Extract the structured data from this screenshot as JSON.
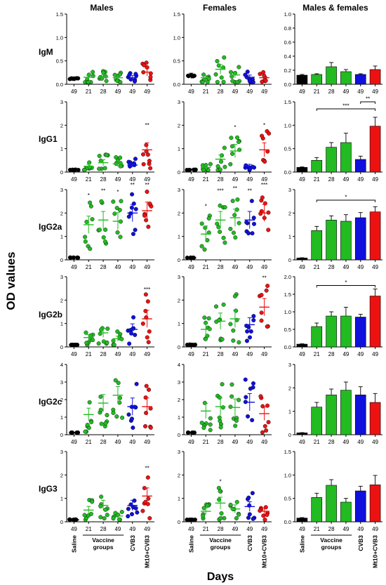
{
  "figure": {
    "columns": [
      "Males",
      "Females",
      "Males & females"
    ],
    "rows": [
      "IgM",
      "IgG1",
      "IgG2a",
      "IgG2b",
      "IgG2c",
      "IgG3"
    ],
    "y_axis_label": "OD values",
    "x_axis_label": "Days",
    "day_labels": [
      "49",
      "21",
      "28",
      "49",
      "49",
      "49"
    ],
    "group_labels": {
      "saline": "Saline",
      "vaccine": "Vaccine groups",
      "cvb3": "CVB3",
      "mt10": "Mt10+CVB3"
    },
    "colors": {
      "saline": "#000000",
      "vaccine": "#22bb22",
      "cvb3": "#1010dd",
      "mt10": "#ee1111"
    }
  },
  "chart_data": [
    {
      "type": "scatter",
      "row": "IgM",
      "column": "Males",
      "ylim": [
        0,
        1.5
      ],
      "ticks": [
        "0.0",
        "0.5",
        "1.0",
        "1.5"
      ],
      "means": [
        0.12,
        0.15,
        0.15,
        0.14,
        0.14,
        0.26
      ],
      "sig": [
        "",
        "",
        "",
        "",
        "",
        ""
      ]
    },
    {
      "type": "scatter",
      "row": "IgM",
      "column": "Females",
      "ylim": [
        0,
        1.5
      ],
      "ticks": [
        "0.0",
        "0.5",
        "1.0",
        "1.5"
      ],
      "means": [
        0.18,
        0.14,
        0.32,
        0.2,
        0.15,
        0.14
      ],
      "sig": [
        "",
        "",
        "",
        "",
        "",
        ""
      ]
    },
    {
      "type": "bar",
      "row": "IgM",
      "column": "Males & females",
      "ylim": [
        0,
        1.0
      ],
      "ticks": [
        "0.0",
        "0.2",
        "0.4",
        "0.6",
        "0.8",
        "1.0"
      ],
      "values": [
        0.13,
        0.14,
        0.25,
        0.18,
        0.14,
        0.21
      ],
      "errors": [
        0.01,
        0.01,
        0.06,
        0.03,
        0.01,
        0.05
      ],
      "brackets": []
    },
    {
      "type": "scatter",
      "row": "IgG1",
      "column": "Males",
      "ylim": [
        0,
        3
      ],
      "ticks": [
        "0",
        "1",
        "2",
        "3"
      ],
      "means": [
        0.1,
        0.25,
        0.4,
        0.35,
        0.3,
        0.95
      ],
      "sig": [
        "",
        "",
        "",
        "",
        "",
        "**"
      ]
    },
    {
      "type": "scatter",
      "row": "IgG1",
      "column": "Females",
      "ylim": [
        0,
        3
      ],
      "ticks": [
        "0",
        "1",
        "2",
        "3"
      ],
      "means": [
        0.1,
        0.2,
        0.55,
        0.9,
        0.25,
        0.95
      ],
      "sig": [
        "",
        "",
        "",
        "*",
        "",
        "*"
      ]
    },
    {
      "type": "bar",
      "row": "IgG1",
      "column": "Males & females",
      "ylim": [
        0,
        1.5
      ],
      "ticks": [
        "0.0",
        "0.5",
        "1.0",
        "1.5"
      ],
      "values": [
        0.1,
        0.25,
        0.53,
        0.63,
        0.27,
        0.98
      ],
      "errors": [
        0.01,
        0.06,
        0.1,
        0.2,
        0.07,
        0.19
      ],
      "brackets": [
        {
          "from": 1,
          "to": 5,
          "label": "***",
          "y": 1.35
        },
        {
          "from": 4,
          "to": 5,
          "label": "**",
          "y": 1.5
        }
      ]
    },
    {
      "type": "scatter",
      "row": "IgG2a",
      "column": "Males",
      "ylim": [
        0,
        3
      ],
      "ticks": [
        "0",
        "1",
        "2",
        "3"
      ],
      "means": [
        0.08,
        1.5,
        1.7,
        1.65,
        2.0,
        2.1
      ],
      "sig": [
        "",
        "*",
        "**",
        "*",
        "**",
        "**"
      ]
    },
    {
      "type": "scatter",
      "row": "IgG2a",
      "column": "Females",
      "ylim": [
        0,
        3
      ],
      "ticks": [
        "0",
        "1",
        "2",
        "3"
      ],
      "means": [
        0.08,
        1.1,
        1.7,
        1.8,
        1.7,
        2.0
      ],
      "sig": [
        "",
        "*",
        "***",
        "**",
        "**",
        "***"
      ]
    },
    {
      "type": "bar",
      "row": "IgG2a",
      "column": "Males & females",
      "ylim": [
        0,
        3
      ],
      "ticks": [
        "0",
        "1",
        "2",
        "3"
      ],
      "values": [
        0.08,
        1.25,
        1.7,
        1.65,
        1.8,
        2.05
      ],
      "errors": [
        0.01,
        0.18,
        0.18,
        0.28,
        0.22,
        0.22
      ],
      "brackets": [
        {
          "from": 1,
          "to": 5,
          "label": "*",
          "y": 2.55
        }
      ]
    },
    {
      "type": "scatter",
      "row": "IgG2b",
      "column": "Males",
      "ylim": [
        0,
        3
      ],
      "ticks": [
        "0",
        "1",
        "2",
        "3"
      ],
      "means": [
        0.08,
        0.4,
        0.6,
        0.35,
        0.75,
        1.2
      ],
      "sig": [
        "",
        "",
        "",
        "",
        "",
        "***"
      ]
    },
    {
      "type": "scatter",
      "row": "IgG2b",
      "column": "Females",
      "ylim": [
        0,
        3
      ],
      "ticks": [
        "0",
        "1",
        "2",
        "3"
      ],
      "means": [
        0.08,
        0.75,
        1.1,
        1.2,
        0.95,
        1.7
      ],
      "sig": [
        "",
        "",
        "",
        "",
        "",
        "**"
      ]
    },
    {
      "type": "bar",
      "row": "IgG2b",
      "column": "Males & females",
      "ylim": [
        0,
        2.0
      ],
      "ticks": [
        "0.0",
        "0.5",
        "1.0",
        "1.5",
        "2.0"
      ],
      "values": [
        0.08,
        0.58,
        0.88,
        0.88,
        0.85,
        1.45
      ],
      "errors": [
        0.01,
        0.1,
        0.12,
        0.25,
        0.08,
        0.2
      ],
      "brackets": [
        {
          "from": 1,
          "to": 5,
          "label": "*",
          "y": 1.75
        }
      ]
    },
    {
      "type": "scatter",
      "row": "IgG2c",
      "column": "Males",
      "ylim": [
        0,
        4
      ],
      "ticks": [
        "0",
        "1",
        "2",
        "3",
        "4"
      ],
      "means": [
        0.1,
        1.15,
        1.8,
        2.25,
        1.6,
        1.6
      ],
      "sig": [
        "",
        "",
        "",
        "",
        "",
        ""
      ]
    },
    {
      "type": "scatter",
      "row": "IgG2c",
      "column": "Females",
      "ylim": [
        0,
        4
      ],
      "ticks": [
        "0",
        "1",
        "2",
        "3",
        "4"
      ],
      "means": [
        0.1,
        1.35,
        1.6,
        1.55,
        1.85,
        1.2
      ],
      "sig": [
        "",
        "",
        "",
        "",
        "",
        ""
      ]
    },
    {
      "type": "bar",
      "row": "IgG2c",
      "column": "Males & females",
      "ylim": [
        0,
        3
      ],
      "ticks": [
        "0",
        "1",
        "2",
        "3"
      ],
      "values": [
        0.08,
        1.18,
        1.7,
        1.9,
        1.7,
        1.38
      ],
      "errors": [
        0.01,
        0.2,
        0.25,
        0.35,
        0.35,
        0.38
      ],
      "brackets": []
    },
    {
      "type": "scatter",
      "row": "IgG3",
      "column": "Males",
      "ylim": [
        0,
        3
      ],
      "ticks": [
        "0",
        "1",
        "2",
        "3"
      ],
      "means": [
        0.08,
        0.5,
        0.7,
        0.25,
        0.7,
        1.1
      ],
      "sig": [
        "",
        "",
        "",
        "",
        "",
        "**"
      ]
    },
    {
      "type": "scatter",
      "row": "IgG3",
      "column": "Females",
      "ylim": [
        0,
        3
      ],
      "ticks": [
        "0",
        "1",
        "2",
        "3"
      ],
      "means": [
        0.08,
        0.45,
        0.8,
        0.55,
        0.65,
        0.45
      ],
      "sig": [
        "",
        "",
        "*",
        "",
        "",
        ""
      ]
    },
    {
      "type": "bar",
      "row": "IgG3",
      "column": "Males & females",
      "ylim": [
        0,
        1.5
      ],
      "ticks": [
        "0.0",
        "0.5",
        "1.0",
        "1.5"
      ],
      "values": [
        0.08,
        0.52,
        0.78,
        0.42,
        0.66,
        0.79
      ],
      "errors": [
        0.01,
        0.09,
        0.12,
        0.08,
        0.1,
        0.2
      ],
      "brackets": []
    }
  ]
}
